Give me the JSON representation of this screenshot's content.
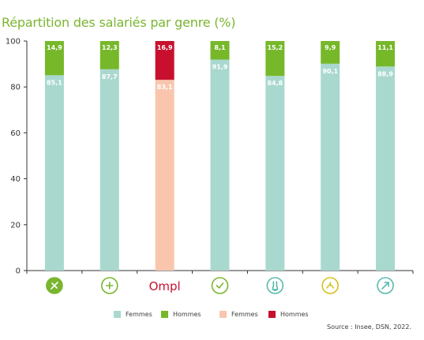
{
  "title": "Répartition des salariés par genre (%)",
  "source": "Source : Insee, DSN, 2022.",
  "colors": {
    "femmes": "#a9d8cf",
    "hommes": "#76b82a",
    "femmes_ompl": "#f9c6ad",
    "hommes_ompl": "#c8102e",
    "axis": "#333333",
    "icon_green": "#7ab52f",
    "icon_teal": "#58b9ae",
    "icon_yellow": "#d6c21c",
    "ompl_red": "#c8102e"
  },
  "legend": [
    {
      "label": "Femmes",
      "color": "#a9d8cf"
    },
    {
      "label": "Hommes",
      "color": "#76b82a"
    },
    {
      "label": "Femmes",
      "color": "#f9c6ad"
    },
    {
      "label": "Hommes",
      "color": "#c8102e"
    }
  ],
  "chart_data": {
    "type": "bar",
    "stacked": true,
    "categories": [
      "grossistes-icon",
      "produits-icon",
      "OMPL",
      "distribution-icon",
      "laboratoires-icon",
      "officine-icon",
      "vétérinaire-icon"
    ],
    "category_display": [
      "icon",
      "icon",
      "Ompl",
      "icon",
      "icon",
      "icon",
      "icon"
    ],
    "series": [
      {
        "name": "Femmes",
        "values": [
          85.1,
          87.7,
          83.1,
          91.9,
          84.8,
          90.1,
          88.9
        ]
      },
      {
        "name": "Hommes",
        "values": [
          14.9,
          12.3,
          16.9,
          8.1,
          15.2,
          9.9,
          11.1
        ]
      }
    ],
    "value_labels_femmes": [
      "85,1",
      "87,7",
      "83,1",
      "91,9",
      "84,8",
      "90,1",
      "88,9"
    ],
    "value_labels_hommes": [
      "14,9",
      "12,3",
      "16,9",
      "8,1",
      "15,2",
      "9,9",
      "11,1"
    ],
    "highlight_index": 2,
    "ylim": [
      0,
      100
    ],
    "yticks": [
      0,
      20,
      40,
      60,
      80,
      100
    ],
    "grid": false,
    "legend_position": "bottom"
  }
}
